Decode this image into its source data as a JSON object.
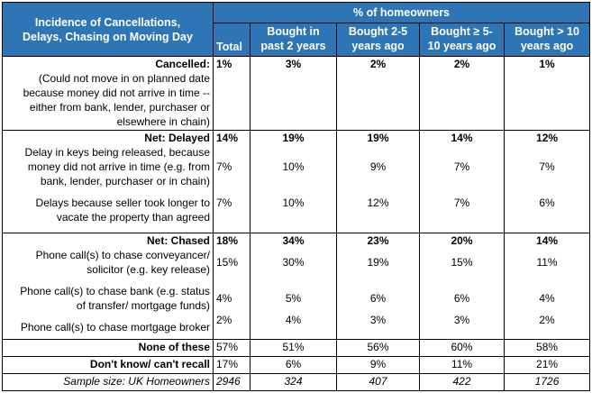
{
  "header": {
    "title_line1": "Incidence of Cancellations,",
    "title_line2": "Delays, Chasing on Moving Day",
    "group": "% of homeowners",
    "columns": [
      {
        "line1": "",
        "line2": "Total"
      },
      {
        "line1": "Bought in",
        "line2": "past 2 years"
      },
      {
        "line1": "Bought 2-5",
        "line2": "years ago"
      },
      {
        "line1": "Bought ≥ 5-",
        "line2": "10 years ago"
      },
      {
        "line1": "Bought > 10",
        "line2": "years ago"
      }
    ]
  },
  "cancelled": {
    "title": "Cancelled:",
    "desc": [
      "(Could not move in on planned date",
      "because money did not arrive in time --",
      "either from bank, lender, purchaser or",
      "elsewhere in chain)"
    ],
    "values": [
      "1%",
      "3%",
      "2%",
      "2%",
      "1%"
    ]
  },
  "delayed": {
    "title": "Net: Delayed",
    "net": [
      "14%",
      "19%",
      "19%",
      "14%",
      "12%"
    ],
    "item1": [
      "Delay in keys being released, because",
      "money did not arrive in time (e.g. from",
      "bank, lender, purchaser or in chain)"
    ],
    "item1_values": [
      "7%",
      "10%",
      "9%",
      "7%",
      "7%"
    ],
    "item2": [
      "Delays because seller took longer to",
      "vacate the property than agreed"
    ],
    "item2_values": [
      "7%",
      "10%",
      "12%",
      "7%",
      "6%"
    ]
  },
  "chased": {
    "title": "Net: Chased",
    "net": [
      "18%",
      "34%",
      "23%",
      "20%",
      "14%"
    ],
    "item1": [
      "Phone call(s) to chase conveyancer/",
      "solicitor (e.g. key release)"
    ],
    "item1_values": [
      "15%",
      "30%",
      "19%",
      "15%",
      "11%"
    ],
    "item2": [
      "Phone call(s) to chase bank (e.g. status",
      "of transfer/ mortgage funds)"
    ],
    "item2_values": [
      "4%",
      "5%",
      "6%",
      "6%",
      "4%"
    ],
    "item3": [
      "Phone call(s) to chase mortgage broker"
    ],
    "item3_values": [
      "2%",
      "4%",
      "3%",
      "3%",
      "2%"
    ]
  },
  "none": {
    "label": "None of these",
    "values": [
      "57%",
      "51%",
      "56%",
      "60%",
      "58%"
    ]
  },
  "dontknow": {
    "label": "Don't know/ can't recall",
    "values": [
      "17%",
      "6%",
      "9%",
      "11%",
      "21%"
    ]
  },
  "sample": {
    "label": "Sample size: UK Homeowners",
    "values": [
      "2946",
      "324",
      "407",
      "422",
      "1726"
    ]
  }
}
